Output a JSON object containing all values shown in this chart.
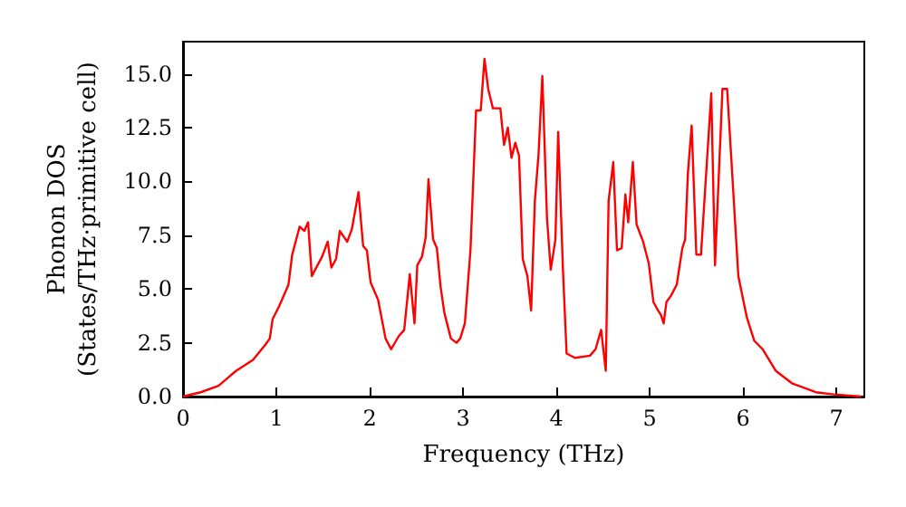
{
  "chart_data": {
    "type": "line",
    "xlabel": "Frequency (THz)",
    "ylabel": "Phonon DOS\n(States/THz·primitive cell)",
    "xlim": [
      0,
      7.3
    ],
    "xticks": [
      0,
      1,
      2,
      3,
      4,
      5,
      6,
      7
    ],
    "ylim": [
      0,
      16.5
    ],
    "yticks": [
      {
        "value": 0,
        "label": "0.0"
      },
      {
        "value": 2.5,
        "label": "2.5"
      },
      {
        "value": 5,
        "label": "5.0"
      },
      {
        "value": 7.5,
        "label": "7.5"
      },
      {
        "value": 10,
        "label": "10.0"
      },
      {
        "value": 12.5,
        "label": "12.5"
      },
      {
        "value": 15,
        "label": "15.0"
      }
    ],
    "grid": false,
    "marker": "none",
    "line_style": "solid",
    "x": [
      0,
      0.19,
      0.38,
      0.57,
      0.75,
      0.88,
      0.93,
      0.96,
      1.03,
      1.13,
      1.17,
      1.25,
      1.3,
      1.34,
      1.38,
      1.44,
      1.49,
      1.55,
      1.59,
      1.64,
      1.68,
      1.76,
      1.81,
      1.88,
      1.93,
      1.97,
      2.01,
      2.09,
      2.17,
      2.23,
      2.31,
      2.37,
      2.43,
      2.48,
      2.51,
      2.56,
      2.6,
      2.63,
      2.68,
      2.72,
      2.76,
      2.8,
      2.87,
      2.93,
      2.97,
      3.02,
      3.08,
      3.14,
      3.19,
      3.23,
      3.27,
      3.32,
      3.4,
      3.44,
      3.48,
      3.52,
      3.56,
      3.6,
      3.64,
      3.69,
      3.73,
      3.77,
      3.81,
      3.85,
      3.9,
      3.94,
      3.99,
      4.02,
      4.07,
      4.11,
      4.2,
      4.36,
      4.42,
      4.48,
      4.53,
      4.56,
      4.61,
      4.65,
      4.7,
      4.74,
      4.77,
      4.82,
      4.86,
      4.93,
      4.99,
      5.04,
      5.09,
      5.12,
      5.15,
      5.18,
      5.23,
      5.29,
      5.35,
      5.38,
      5.41,
      5.45,
      5.5,
      5.55,
      5.66,
      5.7,
      5.78,
      5.83,
      5.95,
      6.04,
      6.12,
      6.21,
      6.35,
      6.53,
      6.78,
      6.97,
      7.27
    ],
    "series": [
      {
        "color": "#ff0000",
        "values": [
          0,
          0.2,
          0.5,
          1.2,
          1.7,
          2.4,
          2.7,
          3.6,
          4.2,
          5.2,
          6.6,
          7.9,
          7.7,
          8.1,
          5.6,
          6.1,
          6.5,
          7.2,
          6.0,
          6.4,
          7.7,
          7.2,
          7.8,
          9.5,
          7.0,
          6.8,
          5.3,
          4.5,
          2.7,
          2.2,
          2.8,
          3.1,
          5.7,
          3.4,
          6.1,
          6.5,
          7.4,
          10.1,
          7.3,
          6.9,
          5.1,
          3.9,
          2.7,
          2.5,
          2.7,
          3.4,
          6.8,
          13.3,
          13.3,
          15.7,
          14.3,
          13.4,
          13.4,
          11.7,
          12.5,
          11.1,
          11.8,
          11.2,
          6.4,
          5.6,
          4.0,
          9.1,
          11.3,
          14.9,
          8.3,
          5.9,
          7.3,
          12.3,
          6.0,
          2.0,
          1.8,
          1.9,
          2.2,
          3.1,
          1.2,
          9.1,
          10.9,
          6.8,
          6.9,
          9.4,
          8.1,
          10.9,
          8.0,
          7.2,
          6.2,
          4.4,
          4.0,
          3.8,
          3.4,
          4.4,
          4.7,
          5.2,
          6.9,
          7.3,
          10.4,
          12.6,
          6.6,
          6.6,
          14.1,
          6.1,
          14.3,
          14.3,
          5.6,
          3.7,
          2.6,
          2.2,
          1.2,
          0.6,
          0.2,
          0.1,
          0.0
        ]
      }
    ]
  }
}
